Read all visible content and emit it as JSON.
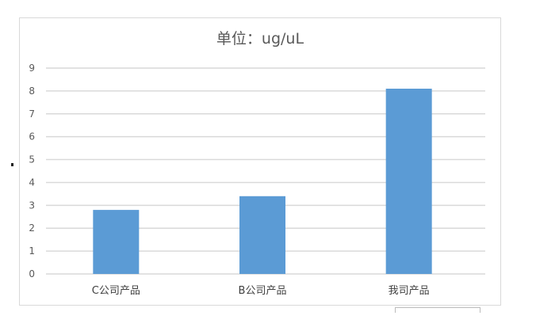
{
  "chart_data": {
    "type": "bar",
    "title": "单位：ug/uL",
    "categories": [
      "C公司产品",
      "B公司产品",
      "我司产品"
    ],
    "values": [
      2.8,
      3.4,
      8.1
    ],
    "ylim": [
      0,
      9
    ],
    "yticks": [
      "0",
      "1",
      "2",
      "3",
      "4",
      "5",
      "6",
      "7",
      "8",
      "9"
    ],
    "grid": true,
    "legend": "none",
    "bar_color": "#5b9bd5",
    "grid_color": "#d9d9d9"
  }
}
